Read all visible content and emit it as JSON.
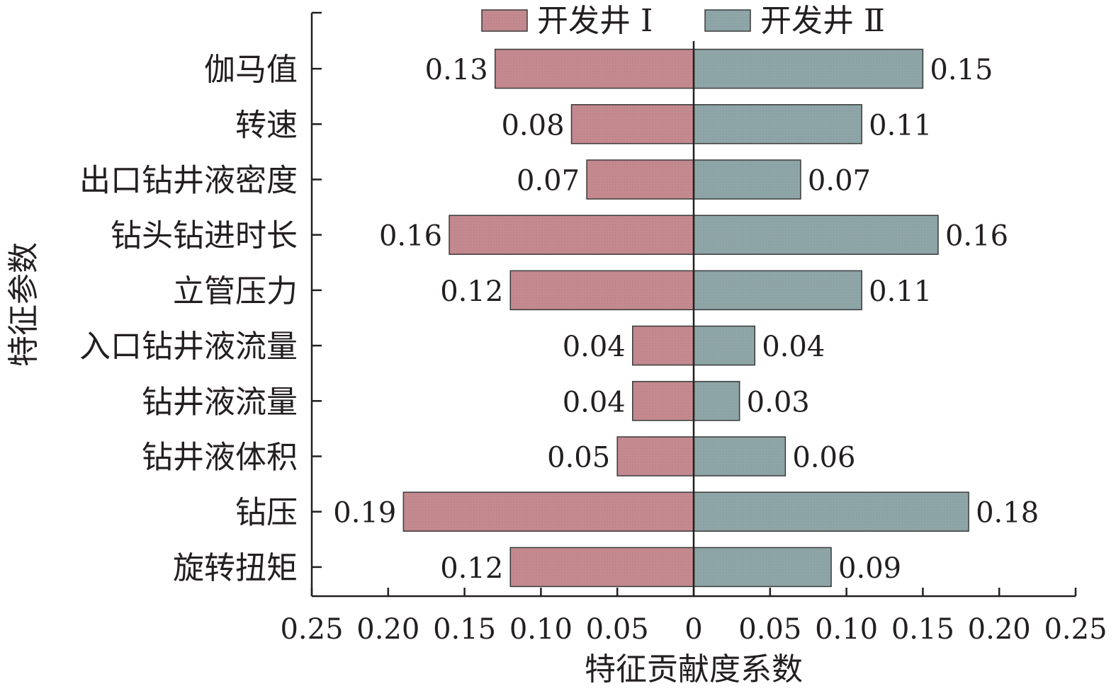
{
  "chart_data": {
    "type": "bar",
    "orientation": "horizontal-diverging",
    "categories": [
      "伽马值",
      "转速",
      "出口钻井液密度",
      "钻头钻进时长",
      "立管压力",
      "入口钻井液流量",
      "钻井液流量",
      "钻井液体积",
      "钻压",
      "旋转扭矩"
    ],
    "series": [
      {
        "name": "开发井 Ⅰ",
        "values": [
          0.13,
          0.08,
          0.07,
          0.16,
          0.12,
          0.04,
          0.04,
          0.05,
          0.19,
          0.12
        ],
        "color": "#c48a8f",
        "direction": "left"
      },
      {
        "name": "开发井 Ⅱ",
        "values": [
          0.15,
          0.11,
          0.07,
          0.16,
          0.11,
          0.04,
          0.03,
          0.06,
          0.18,
          0.09
        ],
        "color": "#8fa6a8",
        "direction": "right"
      }
    ],
    "xlabel": "特征贡献度系数",
    "ylabel": "特征参数",
    "xlim": [
      -0.25,
      0.25
    ],
    "x_ticks": [
      -0.25,
      -0.2,
      -0.15,
      -0.1,
      -0.05,
      0,
      0.05,
      0.1,
      0.15,
      0.2,
      0.25
    ],
    "x_tick_labels": [
      "0.25",
      "0.20",
      "0.15",
      "0.10",
      "0.05",
      "0",
      "0.05",
      "0.10",
      "0.15",
      "0.20",
      "0.25"
    ],
    "value_labels": {
      "开发井 Ⅰ": [
        "0.13",
        "0.08",
        "0.07",
        "0.16",
        "0.12",
        "0.04",
        "0.04",
        "0.05",
        "0.19",
        "0.12"
      ],
      "开发井 Ⅱ": [
        "0.15",
        "0.11",
        "0.07",
        "0.16",
        "0.11",
        "0.04",
        "0.03",
        "0.06",
        "0.18",
        "0.09"
      ]
    },
    "legend_position": "top-right",
    "grid": false
  }
}
